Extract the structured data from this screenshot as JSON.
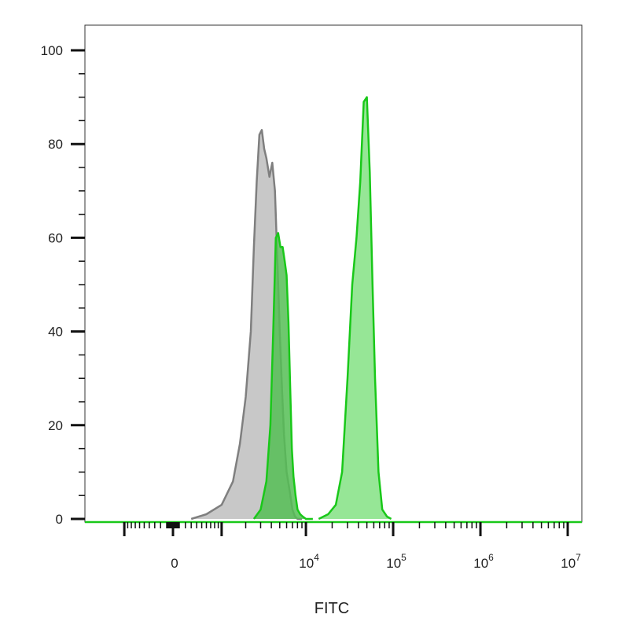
{
  "chart_data": {
    "type": "area",
    "title": "",
    "xlabel": "FITC",
    "ylabel": "",
    "x_scale": "biexponential",
    "ylim": [
      0,
      100
    ],
    "y_ticks": [
      0,
      20,
      40,
      60,
      80,
      100
    ],
    "x_tick_labels": [
      {
        "base": "0",
        "exp": ""
      },
      {
        "base": "10",
        "exp": "4"
      },
      {
        "base": "10",
        "exp": "5"
      },
      {
        "base": "10",
        "exp": "6"
      },
      {
        "base": "10",
        "exp": "7"
      }
    ],
    "x_tick_values": [
      0,
      10000,
      100000,
      1000000,
      10000000
    ],
    "grid": false,
    "series": [
      {
        "color": "#7f7f7f",
        "fill": "#c8c8c8",
        "x": [
          300,
          600,
          1000,
          1400,
          1700,
          2000,
          2300,
          2500,
          2700,
          2900,
          3100,
          3300,
          3500,
          3800,
          4100,
          4400,
          4700,
          5000,
          5300,
          5600,
          6000,
          6500,
          7000,
          7500,
          8000,
          8500,
          9000
        ],
        "values": [
          0,
          1,
          3,
          8,
          16,
          26,
          40,
          58,
          72,
          82,
          83,
          79,
          77,
          73,
          76,
          70,
          55,
          40,
          28,
          18,
          10,
          6,
          2,
          0.5,
          0,
          0,
          0
        ]
      },
      {
        "color": "#19c819",
        "fill": "#55be55",
        "x": [
          2500,
          3000,
          3500,
          3900,
          4200,
          4500,
          4800,
          5100,
          5400,
          5700,
          6000,
          6300,
          6600,
          6900,
          7200,
          7600,
          8000,
          8600,
          9200,
          10000,
          11000,
          12000
        ],
        "values": [
          0,
          2,
          8,
          20,
          40,
          60,
          61,
          58,
          58,
          55,
          52,
          42,
          28,
          15,
          9,
          5,
          2,
          1,
          0.5,
          0,
          0,
          0
        ]
      },
      {
        "color": "#19c819",
        "fill": "#96e696",
        "x": [
          14000,
          18000,
          22000,
          26000,
          30000,
          34000,
          38000,
          42000,
          46000,
          50000,
          54000,
          58000,
          62000,
          68000,
          75000,
          85000,
          95000
        ],
        "values": [
          0,
          1,
          3,
          10,
          30,
          50,
          60,
          72,
          89,
          90,
          74,
          50,
          30,
          10,
          2,
          0.5,
          0
        ]
      }
    ]
  }
}
